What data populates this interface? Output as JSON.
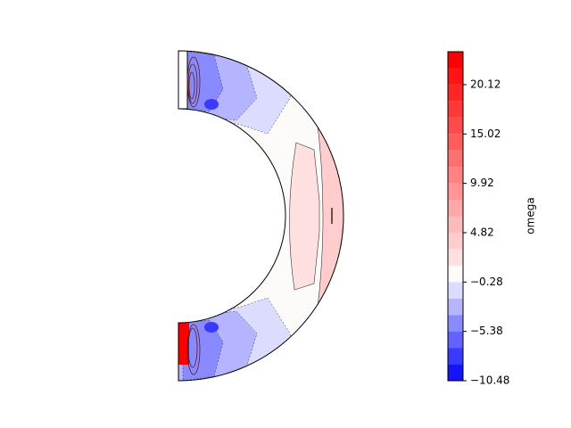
{
  "chart_data": {
    "type": "contour",
    "colorbar_label": "omega",
    "clim": [
      -10.48,
      23.52
    ],
    "levels": [
      -10.48,
      -8.78,
      -7.08,
      -5.38,
      -3.68,
      -1.98,
      -0.28,
      1.42,
      3.12,
      4.82,
      6.52,
      8.22,
      9.92,
      11.62,
      13.32,
      15.02,
      16.72,
      18.42,
      20.12,
      21.82,
      23.52
    ],
    "colors": [
      "#1414ff",
      "#3a3aff",
      "#6262ff",
      "#8a8aff",
      "#b4b4ff",
      "#dcdcff",
      "#fdfafa",
      "#ffe0e0",
      "#ffcdcd",
      "#ffbbbb",
      "#ffa8a8",
      "#ff9595",
      "#ff8383",
      "#ff7070",
      "#ff5d5d",
      "#ff4b4b",
      "#ff3838",
      "#ff2525",
      "#ff1313",
      "#ff0000"
    ],
    "yticks": [
      {
        "value": -10.48,
        "label": "−10.48"
      },
      {
        "value": -5.38,
        "label": "−5.38"
      },
      {
        "value": -0.28,
        "label": "−0.28"
      },
      4.82,
      9.92,
      15.02,
      20.12
    ]
  }
}
